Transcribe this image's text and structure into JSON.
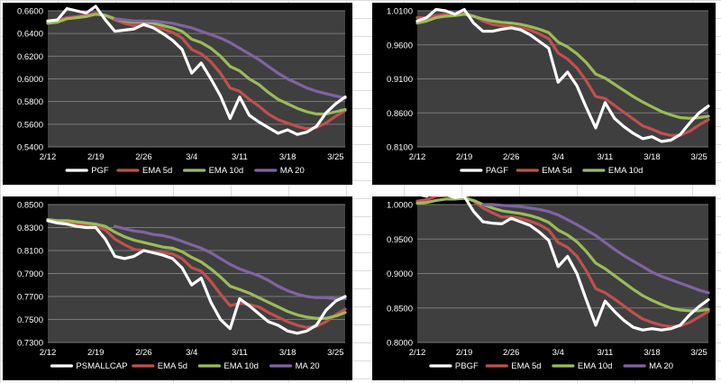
{
  "colors": {
    "page_background": "#ffffff",
    "sheet_gridline": "#dcdcdc",
    "chart_background": "#000000",
    "plot_background": "#3f3f3f",
    "gridline": "#7a7a7a",
    "text": "#ffffff"
  },
  "chart_data": [
    {
      "type": "line",
      "title": "",
      "x_labels": [
        "2/12",
        "2/19",
        "2/26",
        "3/4",
        "3/11",
        "3/18",
        "3/25"
      ],
      "ylim": [
        0.54,
        0.66
      ],
      "y_ticks": [
        "0.6600",
        "0.6400",
        "0.6200",
        "0.6000",
        "0.5800",
        "0.5600",
        "0.5400"
      ],
      "grid": true,
      "legend": "bottom",
      "series": [
        {
          "name": "PGF",
          "color": "#ffffff",
          "start": 0,
          "values": [
            0.651,
            0.652,
            0.662,
            0.66,
            0.658,
            0.664,
            0.652,
            0.642,
            0.643,
            0.644,
            0.648,
            0.645,
            0.64,
            0.634,
            0.626,
            0.605,
            0.614,
            0.6,
            0.585,
            0.565,
            0.584,
            0.568,
            0.562,
            0.557,
            0.552,
            0.555,
            0.551,
            0.553,
            0.558,
            0.57,
            0.578,
            0.584
          ]
        },
        {
          "name": "EMA 5d",
          "color": "#c0504d",
          "start": 0,
          "values": [
            0.651,
            0.652,
            0.654,
            0.655,
            0.656,
            0.658,
            0.656,
            0.652,
            0.649,
            0.647,
            0.647,
            0.646,
            0.644,
            0.641,
            0.636,
            0.626,
            0.622,
            0.615,
            0.605,
            0.592,
            0.589,
            0.582,
            0.576,
            0.569,
            0.564,
            0.561,
            0.558,
            0.556,
            0.557,
            0.561,
            0.567,
            0.572
          ]
        },
        {
          "name": "EMA 10d",
          "color": "#9bbb59",
          "start": 0,
          "values": [
            0.649,
            0.65,
            0.653,
            0.654,
            0.655,
            0.657,
            0.656,
            0.653,
            0.651,
            0.65,
            0.65,
            0.649,
            0.647,
            0.645,
            0.642,
            0.635,
            0.632,
            0.627,
            0.62,
            0.611,
            0.607,
            0.6,
            0.595,
            0.588,
            0.582,
            0.578,
            0.574,
            0.571,
            0.569,
            0.569,
            0.571,
            0.573
          ]
        },
        {
          "name": "MA 20",
          "color": "#8064a2",
          "start": 7,
          "values": [
            0.653,
            0.652,
            0.651,
            0.651,
            0.651,
            0.65,
            0.649,
            0.647,
            0.645,
            0.642,
            0.639,
            0.636,
            0.632,
            0.627,
            0.622,
            0.617,
            0.611,
            0.605,
            0.6,
            0.596,
            0.592,
            0.589,
            0.587,
            0.585,
            0.583
          ]
        }
      ]
    },
    {
      "type": "line",
      "title": "",
      "x_labels": [
        "2/12",
        "2/19",
        "2/26",
        "3/4",
        "3/11",
        "3/18",
        "3/25"
      ],
      "ylim": [
        0.81,
        1.01
      ],
      "y_ticks": [
        "1.0100",
        "0.9600",
        "0.9100",
        "0.8600",
        "0.8100"
      ],
      "grid": true,
      "legend": "bottom",
      "series": [
        {
          "name": "PAGF",
          "color": "#ffffff",
          "start": 0,
          "values": [
            0.995,
            1.0,
            1.012,
            1.01,
            1.005,
            1.012,
            0.992,
            0.98,
            0.98,
            0.983,
            0.985,
            0.982,
            0.975,
            0.965,
            0.955,
            0.905,
            0.92,
            0.9,
            0.868,
            0.838,
            0.875,
            0.852,
            0.84,
            0.83,
            0.822,
            0.825,
            0.818,
            0.82,
            0.828,
            0.845,
            0.86,
            0.87
          ]
        },
        {
          "name": "EMA 5d",
          "color": "#c0504d",
          "start": 0,
          "values": [
            1.0,
            1.0,
            1.003,
            1.005,
            1.005,
            1.007,
            1.002,
            0.995,
            0.99,
            0.988,
            0.987,
            0.985,
            0.982,
            0.976,
            0.969,
            0.948,
            0.939,
            0.926,
            0.907,
            0.884,
            0.881,
            0.871,
            0.861,
            0.851,
            0.841,
            0.836,
            0.83,
            0.827,
            0.827,
            0.833,
            0.842,
            0.85
          ]
        },
        {
          "name": "EMA 10d",
          "color": "#9bbb59",
          "start": 0,
          "values": [
            0.992,
            0.995,
            1.0,
            1.002,
            1.003,
            1.005,
            1.002,
            0.998,
            0.995,
            0.993,
            0.992,
            0.99,
            0.987,
            0.983,
            0.978,
            0.964,
            0.957,
            0.947,
            0.934,
            0.917,
            0.911,
            0.902,
            0.893,
            0.884,
            0.876,
            0.869,
            0.862,
            0.857,
            0.853,
            0.852,
            0.853,
            0.855
          ]
        }
      ]
    },
    {
      "type": "line",
      "title": "",
      "x_labels": [
        "2/12",
        "2/19",
        "2/26",
        "3/4",
        "3/11",
        "3/18",
        "3/25"
      ],
      "ylim": [
        0.73,
        0.85
      ],
      "y_ticks": [
        "0.8500",
        "0.8300",
        "0.8100",
        "0.7900",
        "0.7700",
        "0.7500",
        "0.7300"
      ],
      "grid": true,
      "legend": "bottom",
      "series": [
        {
          "name": "PSMALLCAP",
          "color": "#ffffff",
          "start": 0,
          "values": [
            0.836,
            0.834,
            0.833,
            0.831,
            0.83,
            0.83,
            0.82,
            0.805,
            0.803,
            0.805,
            0.81,
            0.808,
            0.806,
            0.803,
            0.795,
            0.78,
            0.786,
            0.765,
            0.75,
            0.742,
            0.768,
            0.762,
            0.755,
            0.748,
            0.745,
            0.74,
            0.738,
            0.74,
            0.745,
            0.758,
            0.766,
            0.77
          ]
        },
        {
          "name": "EMA 5d",
          "color": "#c0504d",
          "start": 0,
          "values": [
            0.836,
            0.835,
            0.834,
            0.833,
            0.832,
            0.831,
            0.828,
            0.82,
            0.815,
            0.811,
            0.81,
            0.809,
            0.808,
            0.807,
            0.803,
            0.795,
            0.792,
            0.783,
            0.772,
            0.762,
            0.764,
            0.763,
            0.761,
            0.756,
            0.752,
            0.748,
            0.745,
            0.743,
            0.744,
            0.748,
            0.754,
            0.759
          ]
        },
        {
          "name": "EMA 10d",
          "color": "#9bbb59",
          "start": 0,
          "values": [
            0.837,
            0.836,
            0.836,
            0.835,
            0.834,
            0.833,
            0.831,
            0.826,
            0.822,
            0.819,
            0.817,
            0.815,
            0.813,
            0.812,
            0.809,
            0.804,
            0.8,
            0.794,
            0.787,
            0.779,
            0.776,
            0.773,
            0.769,
            0.765,
            0.761,
            0.757,
            0.754,
            0.752,
            0.751,
            0.751,
            0.753,
            0.756
          ]
        },
        {
          "name": "MA 20",
          "color": "#8064a2",
          "start": 7,
          "values": [
            0.831,
            0.829,
            0.827,
            0.826,
            0.824,
            0.823,
            0.821,
            0.818,
            0.815,
            0.812,
            0.808,
            0.803,
            0.798,
            0.794,
            0.791,
            0.788,
            0.784,
            0.779,
            0.775,
            0.772,
            0.77,
            0.769,
            0.769,
            0.768,
            0.768
          ]
        }
      ]
    },
    {
      "type": "line",
      "title": "",
      "x_labels": [
        "2/12",
        "2/19",
        "2/26",
        "3/4",
        "3/11",
        "3/18",
        "3/25"
      ],
      "ylim": [
        0.8,
        1.0
      ],
      "y_ticks": [
        "1.0000",
        "0.9500",
        "0.9000",
        "0.8500",
        "0.8000"
      ],
      "grid": true,
      "legend": "bottom",
      "series": [
        {
          "name": "PBGF",
          "color": "#ffffff",
          "start": 0,
          "values": [
            1.015,
            1.012,
            1.022,
            1.015,
            1.01,
            1.012,
            0.99,
            0.975,
            0.973,
            0.972,
            0.98,
            0.975,
            0.97,
            0.96,
            0.948,
            0.91,
            0.925,
            0.9,
            0.862,
            0.825,
            0.86,
            0.845,
            0.832,
            0.822,
            0.818,
            0.82,
            0.818,
            0.82,
            0.825,
            0.84,
            0.852,
            0.862
          ]
        },
        {
          "name": "EMA 5d",
          "color": "#c0504d",
          "start": 0,
          "values": [
            1.005,
            1.007,
            1.012,
            1.013,
            1.012,
            1.012,
            1.005,
            0.995,
            0.988,
            0.982,
            0.982,
            0.98,
            0.976,
            0.971,
            0.963,
            0.945,
            0.938,
            0.925,
            0.904,
            0.878,
            0.872,
            0.863,
            0.853,
            0.843,
            0.834,
            0.829,
            0.825,
            0.823,
            0.824,
            0.829,
            0.837,
            0.845
          ]
        },
        {
          "name": "EMA 10d",
          "color": "#9bbb59",
          "start": 0,
          "values": [
            1.002,
            1.003,
            1.006,
            1.008,
            1.008,
            1.009,
            1.006,
            1.0,
            0.995,
            0.991,
            0.989,
            0.987,
            0.984,
            0.98,
            0.974,
            0.963,
            0.956,
            0.946,
            0.932,
            0.915,
            0.907,
            0.897,
            0.887,
            0.877,
            0.868,
            0.861,
            0.855,
            0.85,
            0.847,
            0.846,
            0.846,
            0.848
          ]
        },
        {
          "name": "MA 20",
          "color": "#8064a2",
          "start": 7,
          "values": [
            1.0,
            1.0,
            0.999,
            0.998,
            0.997,
            0.995,
            0.993,
            0.99,
            0.985,
            0.978,
            0.971,
            0.963,
            0.955,
            0.945,
            0.935,
            0.926,
            0.918,
            0.91,
            0.902,
            0.896,
            0.891,
            0.886,
            0.881,
            0.876,
            0.872
          ]
        }
      ]
    }
  ]
}
